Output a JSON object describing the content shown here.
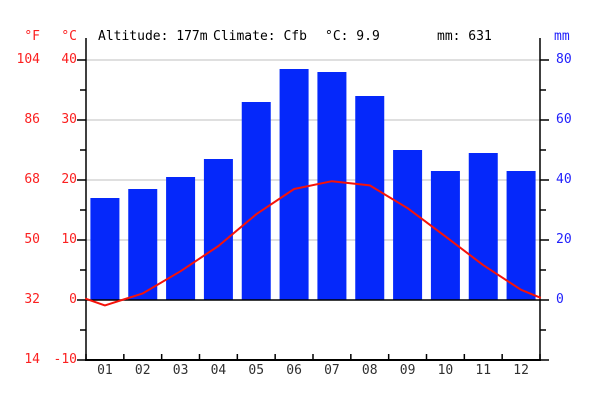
{
  "header": {
    "fahrenheit_label": "°F",
    "celsius_label": "°C",
    "altitude": "Altitude: 177m",
    "climate": "Climate: Cfb",
    "mean_temp": "°C: 9.9",
    "total_precip": "mm: 631",
    "mm_axis_label": "mm"
  },
  "axes": {
    "fahrenheit_ticks": [
      "104",
      "86",
      "68",
      "50",
      "32",
      "14"
    ],
    "celsius_ticks": [
      "40",
      "30",
      "20",
      "10",
      "0",
      "-10"
    ],
    "mm_ticks": [
      "80",
      "60",
      "40",
      "20",
      "0"
    ],
    "month_labels": [
      "01",
      "02",
      "03",
      "04",
      "05",
      "06",
      "07",
      "08",
      "09",
      "10",
      "11",
      "12"
    ]
  },
  "chart_data": [
    {
      "type": "bar",
      "name": "Precipitation",
      "categories": [
        "01",
        "02",
        "03",
        "04",
        "05",
        "06",
        "07",
        "08",
        "09",
        "10",
        "11",
        "12"
      ],
      "values": [
        34,
        37,
        41,
        47,
        66,
        77,
        76,
        68,
        50,
        43,
        49,
        43
      ],
      "total": 631,
      "ylabel": "mm",
      "ylim": [
        0,
        80
      ],
      "axis_side": "right",
      "grid": true
    },
    {
      "type": "line",
      "name": "Temperature",
      "categories": [
        "01",
        "02",
        "03",
        "04",
        "05",
        "06",
        "07",
        "08",
        "09",
        "10",
        "11",
        "12"
      ],
      "values": [
        -0.9,
        1.1,
        4.8,
        9.0,
        14.3,
        18.5,
        19.8,
        19.1,
        15.3,
        10.6,
        5.8,
        1.7
      ],
      "edge_values": {
        "left": 0.2,
        "right": 0.4
      },
      "mean": 9.9,
      "ylabel": "°C",
      "ylabel_secondary": "°F",
      "ylim": [
        -10,
        40
      ],
      "axis_side": "left"
    }
  ],
  "colors": {
    "bar_blue": "#0528fa",
    "line_red": "#f51209",
    "red_text": "#fb2020",
    "blue_text": "#1f1ffc",
    "grid_gray": "#cccccc",
    "axis_black": "#000000",
    "month_text": "#303030"
  }
}
